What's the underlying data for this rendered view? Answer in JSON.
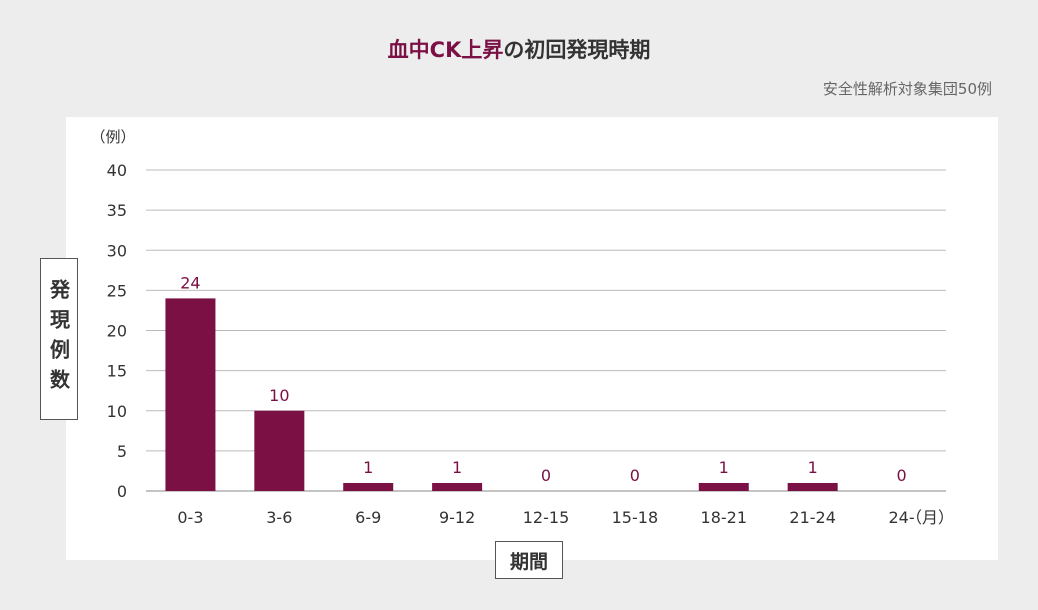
{
  "title": {
    "accent": "血中CK上昇",
    "rest": "の初回発現時期"
  },
  "subtitle": "安全性解析対象集団50例",
  "colors": {
    "bar": "#7a1044",
    "value_label": "#7a1044",
    "grid": "#bbbbbb",
    "background": "#ededed",
    "panel": "#ffffff"
  },
  "chart_data": {
    "type": "bar",
    "title": "血中CK上昇の初回発現時期",
    "ylabel": "発現例数",
    "y_unit": "（例）",
    "xlabel": "期間",
    "x_unit": "（月）",
    "categories": [
      "0-3",
      "3-6",
      "6-9",
      "9-12",
      "12-15",
      "15-18",
      "18-21",
      "21-24",
      "24-"
    ],
    "values": [
      24,
      10,
      1,
      1,
      0,
      0,
      1,
      1,
      0
    ],
    "ylim": [
      0,
      40
    ],
    "yticks": [
      0,
      5,
      10,
      15,
      20,
      25,
      30,
      35,
      40
    ],
    "grid": true,
    "data_labels": true
  }
}
